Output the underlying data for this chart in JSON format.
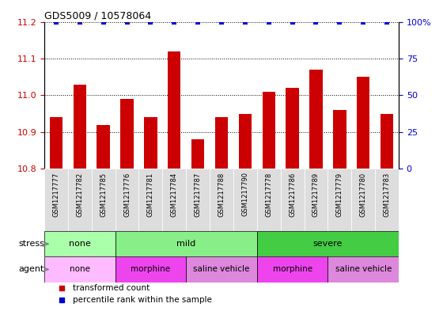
{
  "title": "GDS5009 / 10578064",
  "samples": [
    "GSM1217777",
    "GSM1217782",
    "GSM1217785",
    "GSM1217776",
    "GSM1217781",
    "GSM1217784",
    "GSM1217787",
    "GSM1217788",
    "GSM1217790",
    "GSM1217778",
    "GSM1217786",
    "GSM1217789",
    "GSM1217779",
    "GSM1217780",
    "GSM1217783"
  ],
  "transformed_counts": [
    10.94,
    11.03,
    10.92,
    10.99,
    10.94,
    11.12,
    10.88,
    10.94,
    10.95,
    11.01,
    11.02,
    11.07,
    10.96,
    11.05,
    10.95
  ],
  "percentile_ranks": [
    100,
    100,
    100,
    100,
    100,
    100,
    100,
    100,
    100,
    100,
    100,
    100,
    100,
    100,
    100
  ],
  "ylim_left": [
    10.8,
    11.2
  ],
  "ylim_right": [
    0,
    100
  ],
  "yticks_left": [
    10.8,
    10.9,
    11.0,
    11.1,
    11.2
  ],
  "yticks_right": [
    0,
    25,
    50,
    75,
    100
  ],
  "bar_color": "#cc0000",
  "dot_color": "#0000cc",
  "bar_bottom": 10.8,
  "stress_groups": [
    {
      "label": "none",
      "start": 0,
      "end": 3,
      "color": "#aaffaa"
    },
    {
      "label": "mild",
      "start": 3,
      "end": 9,
      "color": "#88ee88"
    },
    {
      "label": "severe",
      "start": 9,
      "end": 15,
      "color": "#44cc44"
    }
  ],
  "agent_groups": [
    {
      "label": "none",
      "start": 0,
      "end": 3,
      "color": "#ffbbff"
    },
    {
      "label": "morphine",
      "start": 3,
      "end": 6,
      "color": "#ee44ee"
    },
    {
      "label": "saline vehicle",
      "start": 6,
      "end": 9,
      "color": "#dd88dd"
    },
    {
      "label": "morphine",
      "start": 9,
      "end": 12,
      "color": "#ee44ee"
    },
    {
      "label": "saline vehicle",
      "start": 12,
      "end": 15,
      "color": "#dd88dd"
    }
  ],
  "legend_items": [
    {
      "label": "transformed count",
      "color": "#cc0000",
      "marker": "s"
    },
    {
      "label": "percentile rank within the sample",
      "color": "#0000cc",
      "marker": "s"
    }
  ],
  "background_color": "#ffffff",
  "tick_label_color_left": "#cc0000",
  "tick_label_color_right": "#0000cc",
  "xtick_bg": "#dddddd"
}
